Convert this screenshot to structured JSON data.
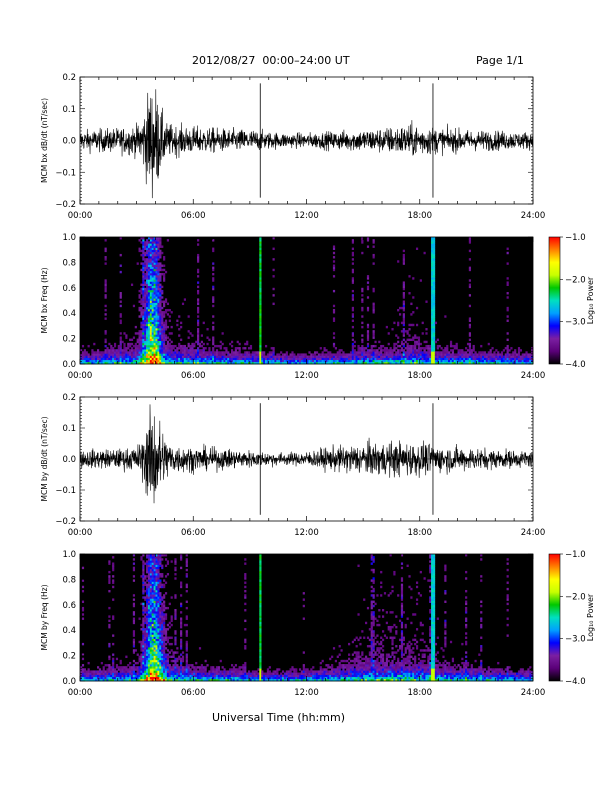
{
  "header": {
    "title": "2012/08/27  00:00–24:00 UT",
    "page": "Page 1/1"
  },
  "xaxis_title": "Universal Time (hh:mm)",
  "chart_data": [
    {
      "type": "line",
      "ylabel": "MCM bx dB/dt (nT/sec)",
      "xlim": [
        0,
        24
      ],
      "ylim": [
        -0.2,
        0.2
      ],
      "x_ticks": [
        "00:00",
        "06:00",
        "12:00",
        "18:00",
        "24:00"
      ],
      "y_ticks": [
        "−0.2",
        "−0.1",
        "0.0",
        "0.1",
        "0.2"
      ],
      "series": [
        {
          "x": [
            0,
            1,
            2,
            3,
            3.4,
            3.7,
            4.0,
            4.3,
            4.6,
            5,
            6,
            7,
            8,
            9,
            9.5,
            10,
            11,
            12,
            13,
            14,
            15,
            16,
            17,
            17.5,
            18.3,
            19,
            20,
            21,
            22,
            23,
            24
          ],
          "amplitude": [
            0.04,
            0.045,
            0.05,
            0.06,
            0.12,
            0.22,
            0.22,
            0.12,
            0.07,
            0.06,
            0.055,
            0.05,
            0.045,
            0.045,
            0.04,
            0.035,
            0.03,
            0.03,
            0.035,
            0.04,
            0.045,
            0.05,
            0.06,
            0.065,
            0.06,
            0.05,
            0.045,
            0.04,
            0.04,
            0.035,
            0.035
          ]
        }
      ]
    },
    {
      "type": "heatmap",
      "ylabel": "MCM bx Freq (Hz)",
      "colorbar_label": "Log₁₀ Power",
      "xlim": [
        0,
        24
      ],
      "ylim": [
        0,
        1.0
      ],
      "x_ticks": [
        "00:00",
        "06:00",
        "12:00",
        "18:00",
        "24:00"
      ],
      "y_ticks": [
        "0.0",
        "0.2",
        "0.4",
        "0.6",
        "0.8",
        "1.0"
      ],
      "color_range": [
        -4.0,
        -1.0
      ],
      "colorbar_ticks": [
        "−1.0",
        "−2.0",
        "−3.0",
        "−4.0"
      ],
      "colormap": [
        "#000000",
        "#5a0078",
        "#7b1fa2",
        "#0000ff",
        "#00a0ff",
        "#00e0c0",
        "#00c800",
        "#c8ff00",
        "#ffff00",
        "#ff8000",
        "#ff0000"
      ]
    },
    {
      "type": "line",
      "ylabel": "MCM by dB/dt (nT/sec)",
      "xlim": [
        0,
        24
      ],
      "ylim": [
        -0.2,
        0.2
      ],
      "x_ticks": [
        "00:00",
        "06:00",
        "12:00",
        "18:00",
        "24:00"
      ],
      "y_ticks": [
        "−0.2",
        "−0.1",
        "0.0",
        "0.1",
        "0.2"
      ],
      "series": [
        {
          "x": [
            0,
            1,
            2,
            3,
            3.4,
            3.7,
            4.0,
            4.3,
            4.6,
            5,
            6,
            7,
            8,
            9,
            9.5,
            10,
            11,
            12,
            13,
            14,
            15,
            16,
            17,
            17.5,
            18.3,
            19,
            20,
            21,
            22,
            23,
            24
          ],
          "amplitude": [
            0.035,
            0.04,
            0.04,
            0.05,
            0.1,
            0.2,
            0.22,
            0.14,
            0.08,
            0.06,
            0.05,
            0.045,
            0.04,
            0.035,
            0.03,
            0.03,
            0.025,
            0.03,
            0.045,
            0.055,
            0.065,
            0.07,
            0.07,
            0.07,
            0.065,
            0.055,
            0.05,
            0.045,
            0.04,
            0.035,
            0.035
          ]
        }
      ]
    },
    {
      "type": "heatmap",
      "ylabel": "MCM by Freq (Hz)",
      "colorbar_label": "Log₁₀ Power",
      "xlim": [
        0,
        24
      ],
      "ylim": [
        0,
        1.0
      ],
      "x_ticks": [
        "00:00",
        "06:00",
        "12:00",
        "18:00",
        "24:00"
      ],
      "y_ticks": [
        "0.0",
        "0.2",
        "0.4",
        "0.6",
        "0.8",
        "1.0"
      ],
      "color_range": [
        -4.0,
        -1.0
      ],
      "colorbar_ticks": [
        "−1.0",
        "−2.0",
        "−3.0",
        "−4.0"
      ],
      "colormap": [
        "#000000",
        "#5a0078",
        "#7b1fa2",
        "#0000ff",
        "#00a0ff",
        "#00e0c0",
        "#00c800",
        "#c8ff00",
        "#ffff00",
        "#ff8000",
        "#ff0000"
      ]
    }
  ]
}
